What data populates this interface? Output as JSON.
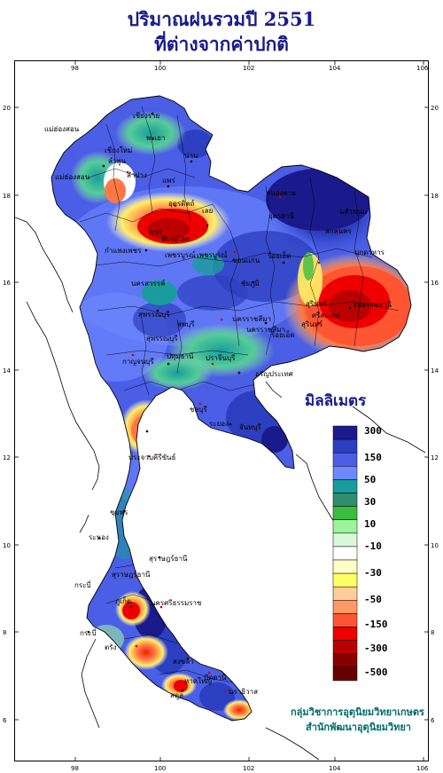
{
  "title": {
    "line1": "ปริมาณฝนรวมปี  2551",
    "line2": "ที่ต่างจากค่าปกติ"
  },
  "axes": {
    "top_ticks": [
      "98",
      "100",
      "102",
      "104",
      "106"
    ],
    "bottom_ticks": [
      "98",
      "100",
      "102",
      "104",
      "106"
    ],
    "left_ticks": [
      "20",
      "18",
      "16",
      "14",
      "12",
      "10",
      "8",
      "6"
    ],
    "right_ticks": [
      "20",
      "18",
      "16",
      "14",
      "12",
      "10",
      "8",
      "6"
    ]
  },
  "legend": {
    "title": "มิลลิเมตร",
    "labels": [
      "300",
      "150",
      "50",
      "30",
      "10",
      "-10",
      "-30",
      "-50",
      "-150",
      "-300",
      "-500"
    ],
    "colors": [
      "#1a1a8c",
      "#2c3fc0",
      "#4a5ee6",
      "#6e88ff",
      "#1a9c9c",
      "#2f8f6a",
      "#3dbb3d",
      "#9df29d",
      "#d8f8d8",
      "#ffffff",
      "#ffffc8",
      "#ffff66",
      "#ffcc99",
      "#ff9966",
      "#ff5533",
      "#ee0000",
      "#bb0000",
      "#880000",
      "#660000"
    ]
  },
  "places": [
    "เชียงราย",
    "แม่ฮ่องสอน",
    "พะเยา",
    "เชียงใหม่",
    "ลำพูน",
    "ลำปาง",
    "น่าน",
    "แพร่",
    "ตาก",
    "อุตรดิตถ์",
    "หนองคาย",
    "อุดรธานี",
    "นครพนม",
    "สกลนคร",
    "มุกดาหาร",
    "เลย",
    "ขอนแก่น",
    "ชัยภูมิ",
    "นครราชสีมา",
    "อุบลราชธานี",
    "สุรินทร์",
    "ศรีสะเกษ",
    "กาญจนบุรี",
    "ชลบุรี",
    "ระยอง",
    "ประจวบคีรีขันธ์",
    "ชุมพร",
    "ระนอง",
    "กระบี่",
    "ภูเก็ต",
    "สุราษฎร์ธานี",
    "นครศรีธรรมราช",
    "ตรัง",
    "สงขลา",
    "สตูล",
    "ปัตตานี",
    "นราธิวาส",
    "พิษณุโลก",
    "เพชรบูรณ์",
    "กำแพงเพชร",
    "นครสวรรค์",
    "ลพบุรี",
    "สุพรรณบุรี",
    "ปทุมธานี",
    "ปราจีนบุรี",
    "จันทบุรี",
    "อรัญประเทศ",
    "หาดใหญ่",
    "เพชรบุรี",
    "ร้อยเอ็ด"
  ],
  "credit": {
    "line1": "กลุ่มวิชาการอุตุนิยมวิทยาเกษตร",
    "line2": "สำนักพัฒนาอุตุนิยมวิทยา"
  },
  "colors": {
    "title": "#1a1a8c",
    "credit": "#006b6b",
    "frame": "#000000"
  }
}
